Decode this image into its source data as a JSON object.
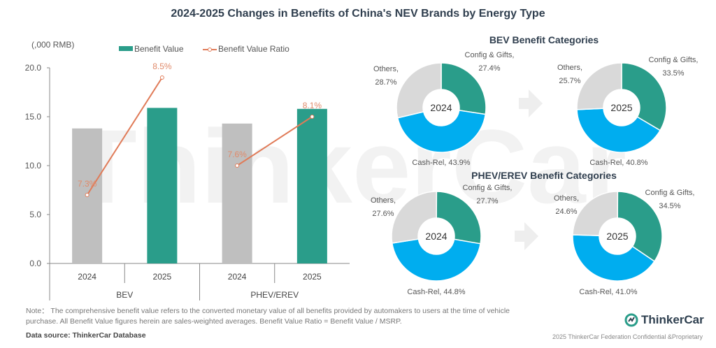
{
  "title": "2024-2025 Changes in Benefits of China's NEV Brands by Energy Type",
  "watermark": "ThinkerCar",
  "colors": {
    "teal": "#2a9d8a",
    "gray_bar": "#bfbfbf",
    "line": "#e07b58",
    "label": "#e08a6a",
    "blue": "#00adef",
    "pie_gray": "#d9d9d9"
  },
  "chart_data": [
    {
      "type": "bar",
      "unit_label": "(,000 RMB)",
      "legend": {
        "bar": "Benefit Value",
        "line": "Benefit Value Ratio",
        "placement": "top"
      },
      "groups": [
        "BEV",
        "PHEV/EREV"
      ],
      "categories": [
        "2024",
        "2025",
        "2024",
        "2025"
      ],
      "values": [
        13.8,
        15.9,
        14.3,
        15.8
      ],
      "ratio": [
        "7.3%",
        "8.5%",
        "7.6%",
        "8.1%"
      ],
      "ratio_values": [
        7.3,
        8.5,
        7.6,
        8.1
      ],
      "ylim": [
        0,
        20
      ],
      "yticks": [
        "0.0",
        "5.0",
        "10.0",
        "15.0",
        "20.0"
      ],
      "grid": false
    },
    {
      "type": "pie",
      "title": "BEV Benefit Categories",
      "charts": [
        {
          "year": "2024",
          "slices": [
            {
              "name": "Config & Gifts",
              "value": "27.4%"
            },
            {
              "name": "Cash-Rel",
              "value": "43.9%"
            },
            {
              "name": "Others",
              "value": "28.7%"
            }
          ]
        },
        {
          "year": "2025",
          "slices": [
            {
              "name": "Config & Gifts",
              "value": "33.5%"
            },
            {
              "name": "Cash-Rel",
              "value": "40.8%"
            },
            {
              "name": "Others",
              "value": "25.7%"
            }
          ]
        }
      ]
    },
    {
      "type": "pie",
      "title": "PHEV/EREV Benefit Categories",
      "charts": [
        {
          "year": "2024",
          "slices": [
            {
              "name": "Config & Gifts",
              "value": "27.7%"
            },
            {
              "name": "Cash-Rel",
              "value": "44.8%"
            },
            {
              "name": "Others",
              "value": "27.6%"
            }
          ]
        },
        {
          "year": "2025",
          "slices": [
            {
              "name": "Config & Gifts",
              "value": "34.5%"
            },
            {
              "name": "Cash-Rel",
              "value": "41.0%"
            },
            {
              "name": "Others",
              "value": "24.6%"
            }
          ]
        }
      ]
    }
  ],
  "footer": {
    "note": "Note： The comprehensive benefit value refers to the converted monetary value of all benefits provided by automakers to users at the time of vehicle purchase. All Benefit Value figures herein are sales-weighted averages. Benefit Value Ratio = Benefit Value / MSRP.",
    "source": "Data source: ThinkerCar Database",
    "brand": "ThinkerCar",
    "copyright": "2025 ThinkerCar Federation Confidential &Proprietary"
  }
}
